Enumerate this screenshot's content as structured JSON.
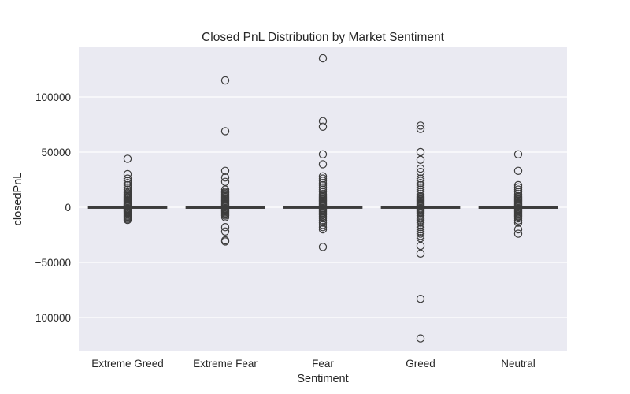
{
  "chart_data": {
    "type": "box",
    "title": "Closed PnL Distribution by Market Sentiment",
    "xlabel": "Sentiment",
    "ylabel": "closedPnL",
    "ylim": [
      -130000,
      145000
    ],
    "yticks": [
      -100000,
      -50000,
      0,
      50000,
      100000
    ],
    "ytick_labels": [
      "−100000",
      "−50000",
      "0",
      "50000",
      "100000"
    ],
    "grid": true,
    "categories": [
      "Extreme Greed",
      "Extreme Fear",
      "Fear",
      "Greed",
      "Neutral"
    ],
    "boxes": [
      {
        "category": "Extreme Greed",
        "median": 0,
        "q1": -20,
        "q3": 200,
        "whisker_low": -500,
        "whisker_high": 700,
        "outliers": [
          44000,
          30000,
          26000,
          24000,
          22000,
          20000,
          18000,
          16000,
          14500,
          13000,
          12000,
          11000,
          10000,
          9000,
          8000,
          7000,
          6000,
          5000,
          4000,
          3200,
          2500,
          1800,
          1200,
          -1000,
          -1600,
          -2200,
          -3000,
          -3800,
          -4600,
          -5500,
          -6500,
          -7500,
          -8500,
          -9500,
          -10500,
          -11500
        ]
      },
      {
        "category": "Extreme Fear",
        "median": 0,
        "q1": -20,
        "q3": 180,
        "whisker_low": -500,
        "whisker_high": 600,
        "outliers": [
          115000,
          69000,
          33000,
          27000,
          23000,
          16000,
          14000,
          13000,
          12000,
          11000,
          10000,
          9000,
          8000,
          7000,
          6000,
          5000,
          4000,
          3000,
          2200,
          1500,
          -1000,
          -1800,
          -2600,
          -3500,
          -4500,
          -5500,
          -6500,
          -7500,
          -9000,
          -18000,
          -22000,
          -30000,
          -31000
        ]
      },
      {
        "category": "Fear",
        "median": 0,
        "q1": -20,
        "q3": 220,
        "whisker_low": -600,
        "whisker_high": 700,
        "outliers": [
          135000,
          78000,
          73000,
          48000,
          39000,
          28000,
          26000,
          24000,
          22000,
          20000,
          18000,
          16000,
          14000,
          12000,
          11000,
          10000,
          9000,
          8000,
          7000,
          6000,
          5000,
          4000,
          3000,
          2200,
          1500,
          -1000,
          -2000,
          -3000,
          -4000,
          -5000,
          -6000,
          -7000,
          -8500,
          -10000,
          -12000,
          -14000,
          -16000,
          -18000,
          -20000,
          -36000
        ]
      },
      {
        "category": "Greed",
        "median": 0,
        "q1": -20,
        "q3": 200,
        "whisker_low": -600,
        "whisker_high": 700,
        "outliers": [
          74000,
          71000,
          50000,
          43000,
          35000,
          32000,
          26000,
          24000,
          22000,
          20000,
          18000,
          16000,
          14000,
          12000,
          10000,
          9000,
          8000,
          7000,
          6000,
          5000,
          4000,
          3000,
          2200,
          1500,
          -1000,
          -2000,
          -3000,
          -4000,
          -5000,
          -6000,
          -7500,
          -9000,
          -10500,
          -12000,
          -14000,
          -16000,
          -18000,
          -20000,
          -22000,
          -24000,
          -26000,
          -28000,
          -35000,
          -42000,
          -83000,
          -119000
        ]
      },
      {
        "category": "Neutral",
        "median": 0,
        "q1": -20,
        "q3": 180,
        "whisker_low": -500,
        "whisker_high": 600,
        "outliers": [
          48000,
          33000,
          20000,
          18000,
          16000,
          14000,
          12000,
          10000,
          9000,
          8000,
          7000,
          6000,
          5000,
          4000,
          3000,
          2200,
          1500,
          -1000,
          -1800,
          -2600,
          -3500,
          -4500,
          -5500,
          -6500,
          -7500,
          -8500,
          -10000,
          -12000,
          -14000,
          -20000,
          -24000
        ]
      }
    ]
  },
  "colors": {
    "plot_background": "#eaeaf2",
    "grid": "#ffffff",
    "box_edge": "#3d3d3d",
    "box_fill": "#e8e8ef"
  }
}
